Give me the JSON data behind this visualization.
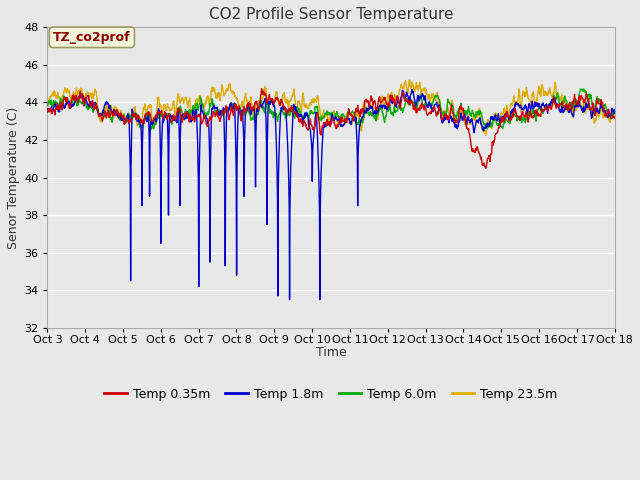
{
  "title": "CO2 Profile Sensor Temperature",
  "ylabel": "Senor Temperature (C)",
  "xlabel": "Time",
  "annotation_text": "TZ_co2prof",
  "annotation_color": "#880000",
  "annotation_bg": "#f5f5dc",
  "annotation_border": "#999966",
  "ylim": [
    32,
    48
  ],
  "yticks": [
    32,
    34,
    36,
    38,
    40,
    42,
    44,
    46,
    48
  ],
  "fig_bg": "#e8e8e8",
  "plot_bg": "#e8e8e8",
  "grid_color": "#ffffff",
  "series": [
    {
      "label": "Temp 0.35m",
      "color": "#cc0000"
    },
    {
      "label": "Temp 1.8m",
      "color": "#0000cc"
    },
    {
      "label": "Temp 6.0m",
      "color": "#00aa00"
    },
    {
      "label": "Temp 23.5m",
      "color": "#ddaa00"
    }
  ],
  "x_tick_labels": [
    "Oct 3",
    "Oct 4",
    "Oct 5",
    "Oct 6",
    "Oct 7",
    "Oct 8",
    "Oct 9",
    "Oct 10",
    "Oct 11",
    "Oct 12",
    "Oct 13",
    "Oct 14",
    "Oct 15",
    "Oct 16",
    "Oct 17",
    "Oct 18"
  ],
  "title_fontsize": 11,
  "label_fontsize": 9,
  "tick_fontsize": 8,
  "legend_fontsize": 9
}
